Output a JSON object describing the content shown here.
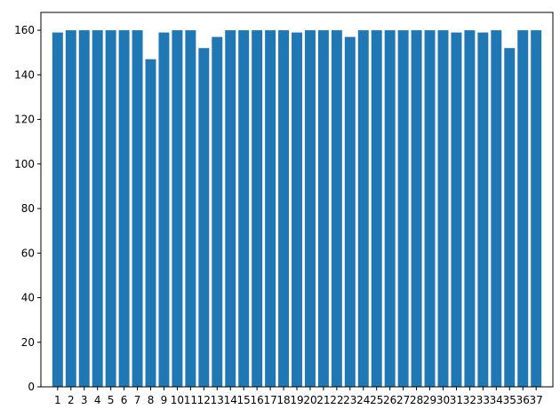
{
  "chart_data": {
    "type": "bar",
    "title": "",
    "xlabel": "",
    "ylabel": "",
    "categories": [
      "1",
      "2",
      "3",
      "4",
      "5",
      "6",
      "7",
      "8",
      "9",
      "10",
      "11",
      "12",
      "13",
      "14",
      "15",
      "16",
      "17",
      "18",
      "19",
      "20",
      "21",
      "22",
      "23",
      "24",
      "25",
      "26",
      "27",
      "28",
      "29",
      "30",
      "31",
      "32",
      "33",
      "34",
      "35",
      "36",
      "37"
    ],
    "values": [
      159,
      160,
      160,
      160,
      160,
      160,
      160,
      147,
      159,
      160,
      160,
      152,
      157,
      160,
      160,
      160,
      160,
      160,
      159,
      160,
      160,
      160,
      157,
      160,
      160,
      160,
      160,
      160,
      160,
      160,
      159,
      160,
      159,
      160,
      152,
      160,
      160
    ],
    "ylim": [
      0,
      168
    ],
    "yticks": [
      0,
      20,
      40,
      60,
      80,
      100,
      120,
      140,
      160
    ],
    "grid": false,
    "bar_color": "#1f77b4"
  }
}
